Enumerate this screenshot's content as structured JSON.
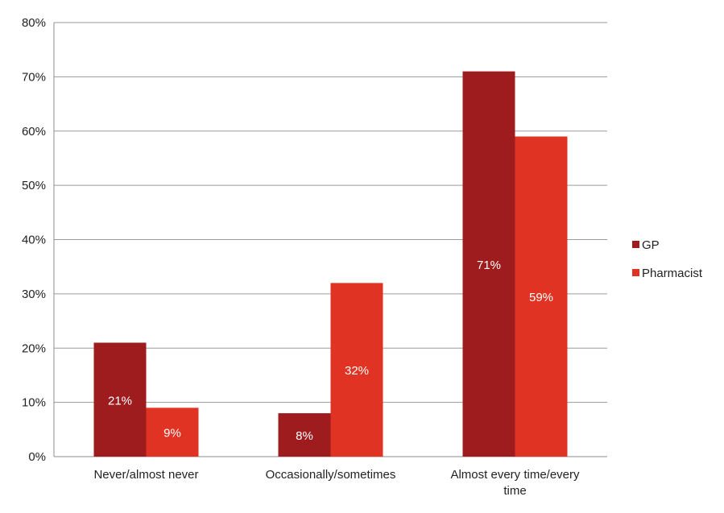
{
  "chart_data": {
    "type": "bar",
    "categories": [
      [
        "Never/almost never"
      ],
      [
        "Occasionally/sometimes"
      ],
      [
        "Almost every time/every",
        "time"
      ]
    ],
    "series": [
      {
        "name": "GP",
        "values": [
          21,
          8,
          71
        ],
        "labels": [
          "21%",
          "8%",
          "71%"
        ],
        "color": "#9e1c1e"
      },
      {
        "name": "Pharmacist",
        "values": [
          9,
          32,
          59
        ],
        "labels": [
          "9%",
          "32%",
          "59%"
        ],
        "color": "#e03323"
      }
    ],
    "ylim": [
      0,
      80
    ],
    "yticks": [
      0,
      10,
      20,
      30,
      40,
      50,
      60,
      70,
      80
    ],
    "ytick_labels": [
      "0%",
      "10%",
      "20%",
      "30%",
      "40%",
      "50%",
      "60%",
      "70%",
      "80%"
    ],
    "grid": true,
    "legend": "right",
    "title": "",
    "xlabel": "",
    "ylabel": ""
  }
}
